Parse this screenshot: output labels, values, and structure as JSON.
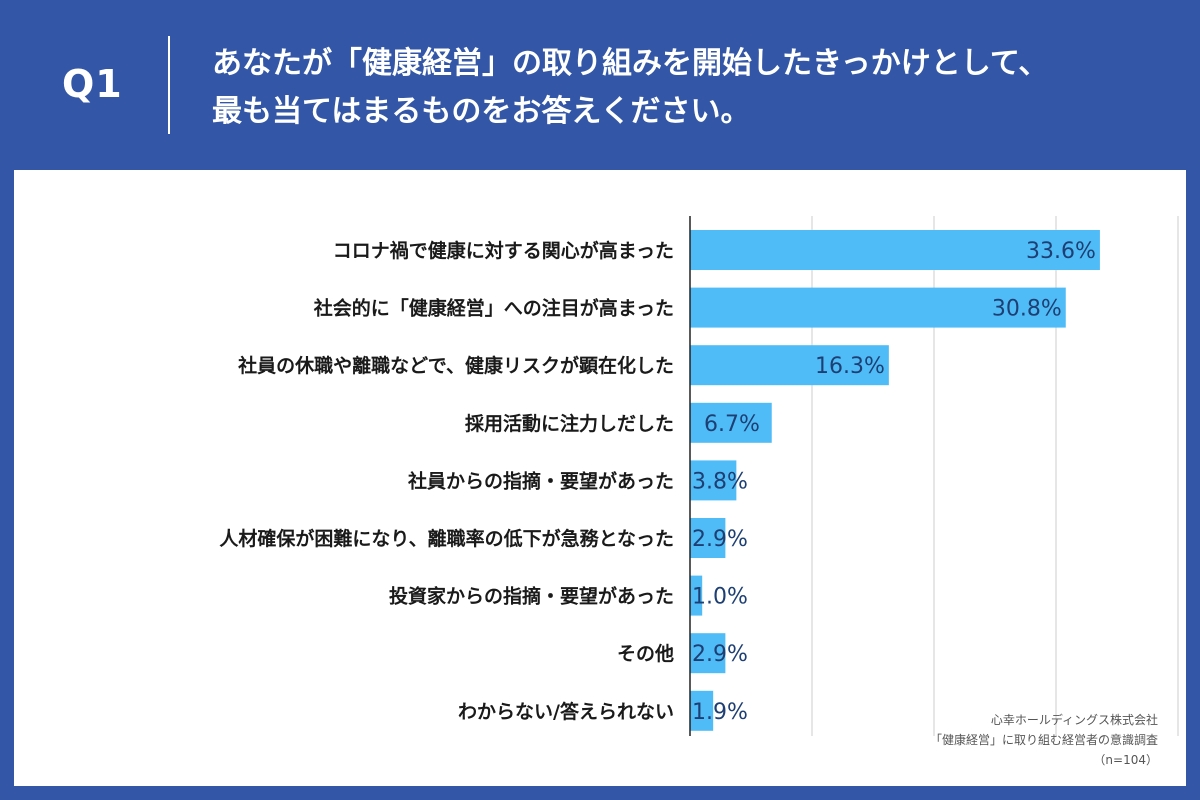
{
  "header": {
    "q_label": "Q1",
    "question_line1": "あなたが「健康経営」の取り組みを開始したきっかけとして、",
    "question_line2": "最も当てはまるものをお答えください。"
  },
  "source": {
    "line1": "心幸ホールディングス株式会社",
    "line2": "「健康経営」に取り組む経営者の意識調査",
    "line3": "（n=104）"
  },
  "colors": {
    "background": "#3357a6",
    "bar": "#4fbcf7",
    "value_text": "#1e3f73",
    "grid": "#cccccc"
  },
  "chart_data": {
    "type": "bar",
    "orientation": "horizontal",
    "categories": [
      "コロナ禍で健康に対する関心が高まった",
      "社会的に「健康経営」への注目が高まった",
      "社員の休職や離職などで、健康リスクが顕在化した",
      "採用活動に注力しだした",
      "社員からの指摘・要望があった",
      "人材確保が困難になり、離職率の低下が急務となった",
      "投資家からの指摘・要望があった",
      "その他",
      "わからない/答えられない"
    ],
    "values": [
      33.6,
      30.8,
      16.3,
      6.7,
      3.8,
      2.9,
      1.0,
      2.9,
      1.9
    ],
    "value_labels": [
      "33.6%",
      "30.8%",
      "16.3%",
      "6.7%",
      "3.8%",
      "2.9%",
      "1.0%",
      "2.9%",
      "1.9%"
    ],
    "xlim": [
      0,
      40
    ],
    "grid": true
  }
}
